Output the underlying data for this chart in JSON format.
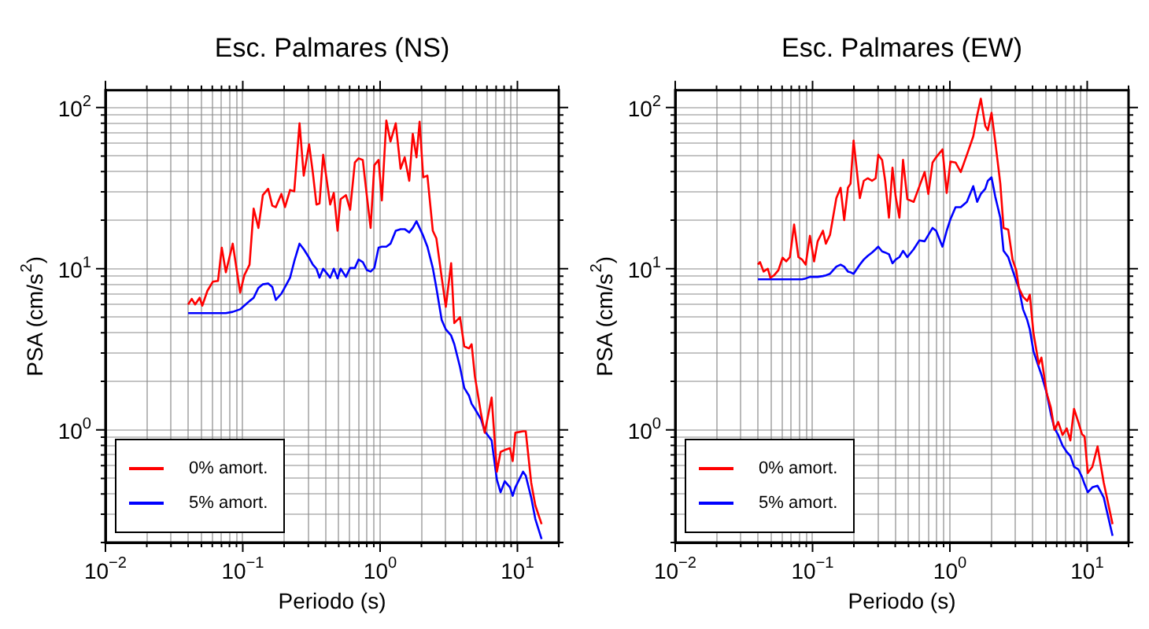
{
  "chart_data": [
    {
      "type": "line",
      "title": "Esc. Palmares (NS)",
      "xlabel": "Periodo (s)",
      "ylabel": "PSA (cm/s$^{2}$)",
      "log": "xy",
      "grid": true,
      "legend": "bottom left",
      "xlim": [
        0.01,
        20
      ],
      "ylim": [
        0.2,
        128
      ],
      "xticks": [
        {
          "value": 0.01,
          "label": "10$^{−2}$"
        },
        {
          "value": 0.02,
          "label": null
        },
        {
          "value": 0.03,
          "label": null
        },
        {
          "value": 0.04,
          "label": null
        },
        {
          "value": 0.05,
          "label": null
        },
        {
          "value": 0.06,
          "label": null
        },
        {
          "value": 0.07,
          "label": null
        },
        {
          "value": 0.08,
          "label": null
        },
        {
          "value": 0.09,
          "label": null
        },
        {
          "value": 0.1,
          "label": "10$^{−1}$"
        },
        {
          "value": 0.2,
          "label": null
        },
        {
          "value": 0.3,
          "label": null
        },
        {
          "value": 0.4,
          "label": null
        },
        {
          "value": 0.5,
          "label": null
        },
        {
          "value": 0.6,
          "label": null
        },
        {
          "value": 0.7,
          "label": null
        },
        {
          "value": 0.8,
          "label": null
        },
        {
          "value": 0.9,
          "label": null
        },
        {
          "value": 1,
          "label": "10$^{0}$"
        },
        {
          "value": 2,
          "label": null
        },
        {
          "value": 3,
          "label": null
        },
        {
          "value": 4,
          "label": null
        },
        {
          "value": 5,
          "label": null
        },
        {
          "value": 6,
          "label": null
        },
        {
          "value": 7,
          "label": null
        },
        {
          "value": 8,
          "label": null
        },
        {
          "value": 9,
          "label": null
        },
        {
          "value": 10,
          "label": "10$^{1}$"
        },
        {
          "value": 20,
          "label": null
        }
      ],
      "yticks": [
        {
          "value": 0.2,
          "label": null
        },
        {
          "value": 0.3,
          "label": null
        },
        {
          "value": 0.4,
          "label": null
        },
        {
          "value": 0.5,
          "label": null
        },
        {
          "value": 0.6,
          "label": null
        },
        {
          "value": 0.7,
          "label": null
        },
        {
          "value": 0.8,
          "label": null
        },
        {
          "value": 0.9,
          "label": null
        },
        {
          "value": 1,
          "label": "10$^{0}$"
        },
        {
          "value": 2,
          "label": null
        },
        {
          "value": 3,
          "label": null
        },
        {
          "value": 4,
          "label": null
        },
        {
          "value": 5,
          "label": null
        },
        {
          "value": 6,
          "label": null
        },
        {
          "value": 7,
          "label": null
        },
        {
          "value": 8,
          "label": null
        },
        {
          "value": 9,
          "label": null
        },
        {
          "value": 10,
          "label": "10$^{1}$"
        },
        {
          "value": 20,
          "label": null
        },
        {
          "value": 30,
          "label": null
        },
        {
          "value": 40,
          "label": null
        },
        {
          "value": 50,
          "label": null
        },
        {
          "value": 60,
          "label": null
        },
        {
          "value": 70,
          "label": null
        },
        {
          "value": 80,
          "label": null
        },
        {
          "value": 90,
          "label": null
        },
        {
          "value": 100,
          "label": "10$^{2}$"
        }
      ],
      "x": [
        0.04,
        0.0425,
        0.045,
        0.0485,
        0.0507,
        0.0553,
        0.0605,
        0.066,
        0.0703,
        0.0753,
        0.0845,
        0.0957,
        0.1026,
        0.112,
        0.12,
        0.13,
        0.14,
        0.153,
        0.164,
        0.174,
        0.191,
        0.203,
        0.221,
        0.237,
        0.259,
        0.278,
        0.304,
        0.324,
        0.344,
        0.362,
        0.385,
        0.433,
        0.46,
        0.49,
        0.516,
        0.564,
        0.605,
        0.655,
        0.697,
        0.748,
        0.802,
        0.853,
        0.908,
        0.975,
        1.03,
        1.11,
        1.19,
        1.3,
        1.41,
        1.51,
        1.63,
        1.73,
        1.84,
        1.94,
        2.06,
        2.21,
        2.42,
        2.57,
        2.81,
        3.01,
        3.29,
        3.47,
        3.82,
        4.1,
        4.44,
        4.64,
        4.9,
        5.44,
        5.78,
        6.49,
        7.09,
        7.54,
        8.09,
        8.83,
        9.24,
        9.66,
        11.0,
        11.5,
        12.6,
        13.5,
        15.0
      ],
      "series": [
        {
          "name": "0% amort.",
          "color": "#ff0000",
          "values": [
            6.0,
            6.5,
            6.0,
            6.6,
            5.9,
            7.3,
            8.3,
            8.4,
            13.5,
            9.5,
            14.3,
            7.1,
            9.1,
            10.6,
            23.6,
            17.9,
            28.6,
            31.3,
            24.6,
            24.1,
            29.1,
            24.1,
            30.8,
            30.2,
            79.8,
            37.8,
            59.2,
            39.2,
            25.0,
            25.4,
            50.9,
            25.0,
            29.5,
            17.2,
            27.0,
            28.6,
            23.2,
            45.6,
            48.4,
            47.3,
            28.0,
            17.9,
            43.9,
            47.3,
            26.5,
            83.0,
            61.5,
            79.8,
            41.7,
            49.1,
            35.1,
            68.7,
            49.1,
            81.7,
            36.9,
            37.8,
            17.2,
            15.4,
            8.8,
            5.8,
            10.8,
            4.6,
            5.0,
            3.3,
            3.2,
            3.4,
            2.15,
            1.25,
            0.96,
            1.59,
            0.55,
            0.73,
            0.75,
            0.77,
            0.64,
            0.96,
            0.98,
            0.98,
            0.47,
            0.34,
            0.26
          ]
        },
        {
          "name": "5% amort.",
          "color": "#0000ff",
          "values": [
            5.3,
            5.3,
            5.3,
            5.3,
            5.3,
            5.3,
            5.3,
            5.3,
            5.3,
            5.3,
            5.4,
            5.6,
            5.9,
            6.3,
            6.6,
            7.6,
            8.0,
            8.1,
            7.7,
            6.4,
            7.0,
            7.7,
            8.8,
            11.1,
            14.3,
            13.2,
            11.7,
            10.6,
            10.0,
            8.8,
            10.0,
            8.8,
            10.0,
            8.7,
            10.0,
            8.9,
            10.1,
            10.1,
            11.4,
            11.0,
            9.8,
            9.6,
            10.1,
            13.5,
            13.7,
            13.7,
            14.3,
            17.2,
            17.6,
            17.6,
            16.8,
            17.9,
            19.7,
            17.9,
            16.0,
            13.7,
            10.1,
            7.6,
            4.8,
            4.2,
            3.85,
            3.4,
            2.45,
            1.82,
            1.63,
            1.45,
            1.35,
            1.16,
            0.98,
            0.86,
            0.49,
            0.41,
            0.48,
            0.44,
            0.39,
            0.44,
            0.55,
            0.52,
            0.38,
            0.28,
            0.21
          ]
        }
      ]
    },
    {
      "type": "line",
      "title": "Esc. Palmares (EW)",
      "xlabel": "Periodo (s)",
      "ylabel": "PSA (cm/s$^{2}$)",
      "log": "xy",
      "grid": true,
      "legend": "bottom left",
      "xlim": [
        0.01,
        20
      ],
      "ylim": [
        0.2,
        128
      ],
      "xticks": [
        {
          "value": 0.01,
          "label": "10$^{−2}$"
        },
        {
          "value": 0.02,
          "label": null
        },
        {
          "value": 0.03,
          "label": null
        },
        {
          "value": 0.04,
          "label": null
        },
        {
          "value": 0.05,
          "label": null
        },
        {
          "value": 0.06,
          "label": null
        },
        {
          "value": 0.07,
          "label": null
        },
        {
          "value": 0.08,
          "label": null
        },
        {
          "value": 0.09,
          "label": null
        },
        {
          "value": 0.1,
          "label": "10$^{−1}$"
        },
        {
          "value": 0.2,
          "label": null
        },
        {
          "value": 0.3,
          "label": null
        },
        {
          "value": 0.4,
          "label": null
        },
        {
          "value": 0.5,
          "label": null
        },
        {
          "value": 0.6,
          "label": null
        },
        {
          "value": 0.7,
          "label": null
        },
        {
          "value": 0.8,
          "label": null
        },
        {
          "value": 0.9,
          "label": null
        },
        {
          "value": 1,
          "label": "10$^{0}$"
        },
        {
          "value": 2,
          "label": null
        },
        {
          "value": 3,
          "label": null
        },
        {
          "value": 4,
          "label": null
        },
        {
          "value": 5,
          "label": null
        },
        {
          "value": 6,
          "label": null
        },
        {
          "value": 7,
          "label": null
        },
        {
          "value": 8,
          "label": null
        },
        {
          "value": 9,
          "label": null
        },
        {
          "value": 10,
          "label": "10$^{1}$"
        },
        {
          "value": 20,
          "label": null
        }
      ],
      "yticks": [
        {
          "value": 0.2,
          "label": null
        },
        {
          "value": 0.3,
          "label": null
        },
        {
          "value": 0.4,
          "label": null
        },
        {
          "value": 0.5,
          "label": null
        },
        {
          "value": 0.6,
          "label": null
        },
        {
          "value": 0.7,
          "label": null
        },
        {
          "value": 0.8,
          "label": null
        },
        {
          "value": 0.9,
          "label": null
        },
        {
          "value": 1,
          "label": "10$^{0}$"
        },
        {
          "value": 2,
          "label": null
        },
        {
          "value": 3,
          "label": null
        },
        {
          "value": 4,
          "label": null
        },
        {
          "value": 5,
          "label": null
        },
        {
          "value": 6,
          "label": null
        },
        {
          "value": 7,
          "label": null
        },
        {
          "value": 8,
          "label": null
        },
        {
          "value": 9,
          "label": null
        },
        {
          "value": 10,
          "label": "10$^{1}$"
        },
        {
          "value": 20,
          "label": null
        },
        {
          "value": 30,
          "label": null
        },
        {
          "value": 40,
          "label": null
        },
        {
          "value": 50,
          "label": null
        },
        {
          "value": 60,
          "label": null
        },
        {
          "value": 70,
          "label": null
        },
        {
          "value": 80,
          "label": null
        },
        {
          "value": 90,
          "label": null
        },
        {
          "value": 100,
          "label": "10$^{2}$"
        }
      ],
      "x": [
        0.04,
        0.0414,
        0.044,
        0.0472,
        0.0493,
        0.0525,
        0.0564,
        0.0605,
        0.0643,
        0.0684,
        0.0734,
        0.0789,
        0.0838,
        0.0891,
        0.0957,
        0.1026,
        0.109,
        0.119,
        0.125,
        0.134,
        0.149,
        0.16,
        0.17,
        0.181,
        0.189,
        0.199,
        0.221,
        0.236,
        0.252,
        0.271,
        0.288,
        0.301,
        0.321,
        0.338,
        0.36,
        0.382,
        0.403,
        0.429,
        0.456,
        0.49,
        0.545,
        0.6,
        0.655,
        0.697,
        0.748,
        0.794,
        0.883,
        0.948,
        1.01,
        1.1,
        1.2,
        1.33,
        1.48,
        1.58,
        1.68,
        1.81,
        1.89,
        2.01,
        2.14,
        2.33,
        2.46,
        2.66,
        2.86,
        3.04,
        3.18,
        3.41,
        3.66,
        3.82,
        4.06,
        4.44,
        4.64,
        5.07,
        5.44,
        5.78,
        6.15,
        6.61,
        7.09,
        7.54,
        8.02,
        8.61,
        9.16,
        9.57,
        10.1,
        10.9,
        11.9,
        13.2,
        15.3
      ],
      "series": [
        {
          "name": "0% amort.",
          "color": "#ff0000",
          "values": [
            10.6,
            11.0,
            9.6,
            10.0,
            8.8,
            9.1,
            9.8,
            11.7,
            11.1,
            11.8,
            18.8,
            11.8,
            11.4,
            10.6,
            16.0,
            11.1,
            14.8,
            17.2,
            14.3,
            16.2,
            27.4,
            31.8,
            20.0,
            31.8,
            33.7,
            62.4,
            27.4,
            35.1,
            36.4,
            35.1,
            36.4,
            50.9,
            47.3,
            35.1,
            20.7,
            42.3,
            28.0,
            20.7,
            47.3,
            27.0,
            26.0,
            32.5,
            39.8,
            29.1,
            45.6,
            49.1,
            55.0,
            29.5,
            46.2,
            45.6,
            39.8,
            50.9,
            66.2,
            89.3,
            113.5,
            76.9,
            72.4,
            92.7,
            61.5,
            33.7,
            17.9,
            17.5,
            11.4,
            9.8,
            7.6,
            6.7,
            6.3,
            6.9,
            4.0,
            2.55,
            2.81,
            1.69,
            1.37,
            1.0,
            1.12,
            0.93,
            1.02,
            0.86,
            1.35,
            1.12,
            0.94,
            0.91,
            0.54,
            0.59,
            0.79,
            0.47,
            0.26
          ]
        },
        {
          "name": "5% amort.",
          "color": "#0000ff",
          "values": [
            8.6,
            8.6,
            8.6,
            8.6,
            8.6,
            8.6,
            8.6,
            8.6,
            8.6,
            8.6,
            8.6,
            8.6,
            8.6,
            8.7,
            8.9,
            8.9,
            8.9,
            9.0,
            9.1,
            9.3,
            10.3,
            10.6,
            10.3,
            9.6,
            9.5,
            9.3,
            10.6,
            11.4,
            12.0,
            12.6,
            13.2,
            13.7,
            12.8,
            12.6,
            12.3,
            10.8,
            11.4,
            11.8,
            12.9,
            11.8,
            13.2,
            15.0,
            14.8,
            16.2,
            17.9,
            17.2,
            13.7,
            17.2,
            20.3,
            24.1,
            24.1,
            26.0,
            32.5,
            26.0,
            29.1,
            31.3,
            35.1,
            36.9,
            28.0,
            20.7,
            12.9,
            11.8,
            9.8,
            8.4,
            7.6,
            5.6,
            4.8,
            4.2,
            3.08,
            2.45,
            2.2,
            1.69,
            1.25,
            1.02,
            0.93,
            0.8,
            0.73,
            0.69,
            0.59,
            0.57,
            0.51,
            0.46,
            0.41,
            0.44,
            0.45,
            0.38,
            0.22
          ]
        }
      ]
    }
  ]
}
